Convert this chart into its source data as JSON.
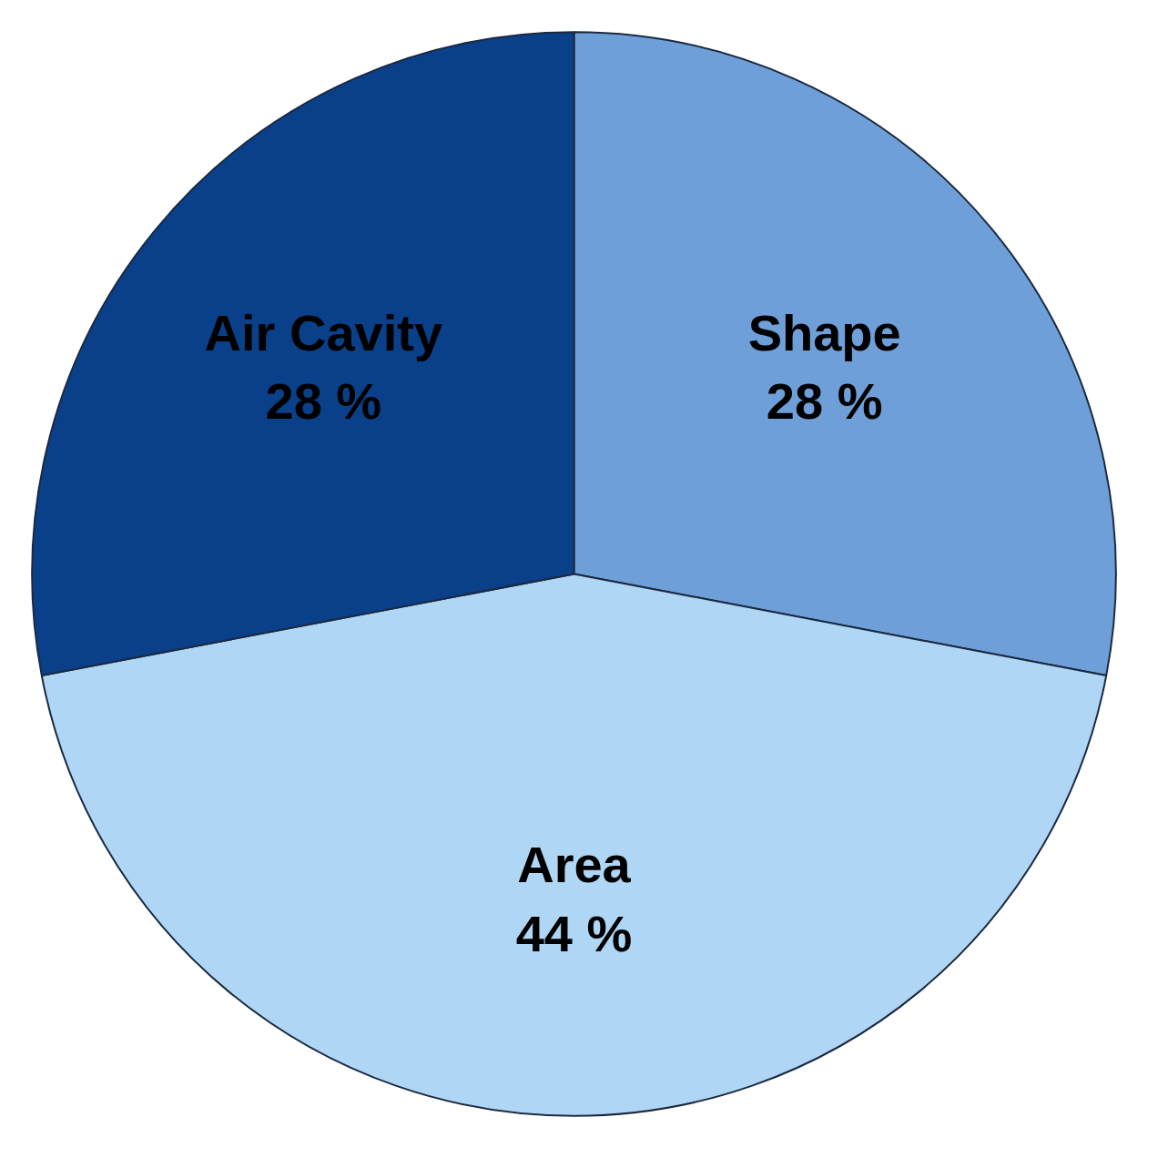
{
  "chart_data": {
    "type": "pie",
    "categories": [
      "Shape",
      "Area",
      "Air Cavity"
    ],
    "values": [
      28,
      44,
      28
    ],
    "value_labels": [
      "28 %",
      "44 %",
      "28 %"
    ],
    "colors": [
      "#6f9fd8",
      "#b0d6f5",
      "#0a3f8a"
    ]
  }
}
